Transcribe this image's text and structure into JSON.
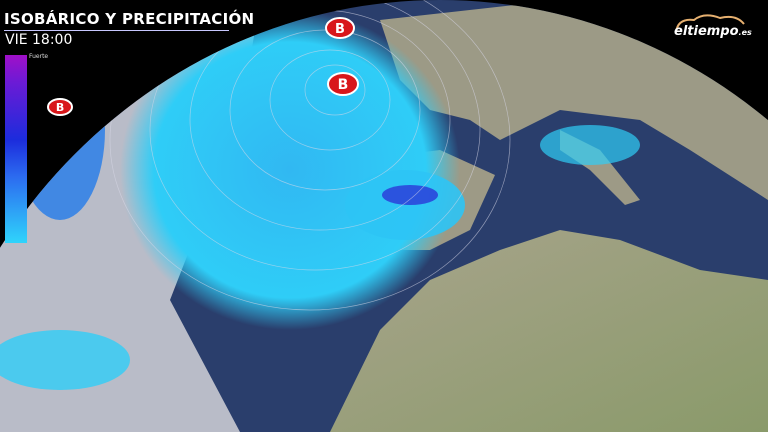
{
  "header": {
    "title": "ISOBÁRICO Y PRECIPITACIÓN",
    "time": "VIE 18:00"
  },
  "legend": {
    "top_label": "Fuerte",
    "gradient_colors": [
      "#a010c8",
      "#1c2cdc",
      "#2fd4fb"
    ]
  },
  "logo": {
    "name": "eltiempo",
    "suffix": ".es"
  },
  "map": {
    "low_pressure_label": "B",
    "colors": {
      "ocean": "#1c3868",
      "land": "#a89e7e",
      "precip": "#2ecff7",
      "precip_heavy": "#2230d8",
      "cloud": "#c8cbd6",
      "low_marker": "#d8161a"
    }
  }
}
